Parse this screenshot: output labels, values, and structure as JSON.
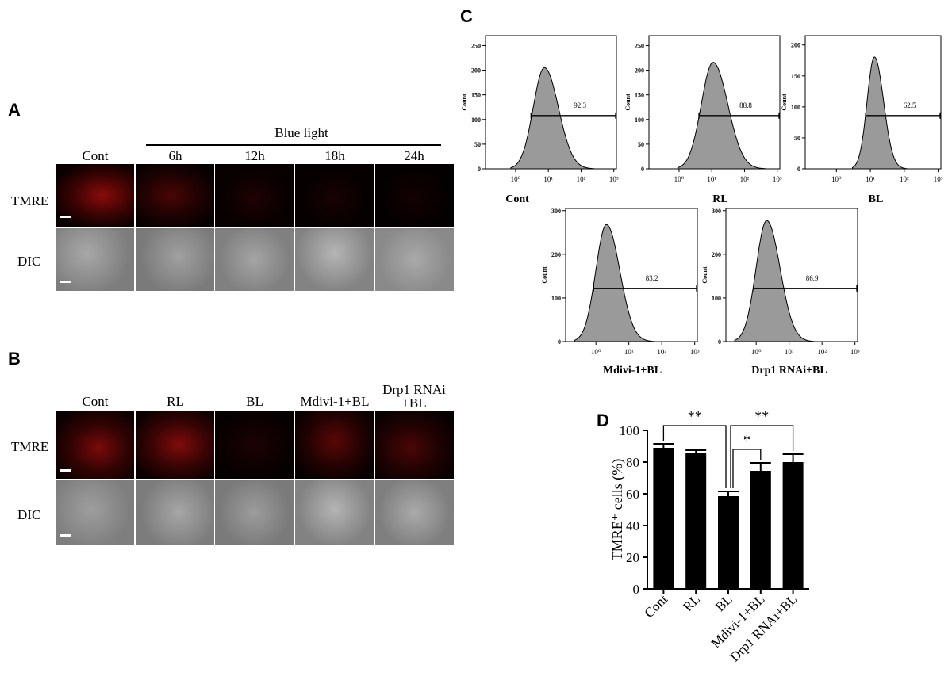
{
  "panels": {
    "A": "A",
    "B": "B",
    "C": "C",
    "D": "D"
  },
  "panel_a": {
    "group_label": "Blue light",
    "columns": [
      "Cont",
      "6h",
      "12h",
      "18h",
      "24h"
    ],
    "rows": [
      "TMRE",
      "DIC"
    ]
  },
  "panel_b": {
    "columns": [
      "Cont",
      "RL",
      "BL",
      "Mdivi-1+BL",
      "Drp1 RNAi",
      "+BL"
    ],
    "rows": [
      "TMRE",
      "DIC"
    ]
  },
  "panel_c": {
    "plots": [
      {
        "label": "Cont",
        "gate": "92.3",
        "yticks": [
          "0",
          "50",
          "100",
          "150",
          "200",
          "250"
        ]
      },
      {
        "label": "RL",
        "gate": "88.8",
        "yticks": [
          "0",
          "50",
          "100",
          "150",
          "200",
          "250"
        ]
      },
      {
        "label": "BL",
        "gate": "62.5",
        "yticks": [
          "0",
          "50",
          "100",
          "150",
          "200"
        ]
      },
      {
        "label": "Mdivi-1+BL",
        "gate": "83.2",
        "yticks": [
          "0",
          "100",
          "200",
          "300"
        ]
      },
      {
        "label": "Drp1 RNAi+BL",
        "gate": "86.9",
        "yticks": [
          "0",
          "100",
          "200",
          "300"
        ]
      }
    ],
    "ylabel": "Count",
    "xticks": [
      "10⁰",
      "10¹",
      "10²",
      "10³"
    ]
  },
  "chart_data": {
    "type": "bar",
    "categories": [
      "Cont",
      "RL",
      "BL",
      "Mdivi-1+BL",
      "Drp1 RNAi+BL"
    ],
    "values": [
      89,
      86,
      58.5,
      74.5,
      80
    ],
    "errors": [
      2.5,
      1.5,
      3,
      5,
      5
    ],
    "ylabel": "TMRE⁺ cells (%)",
    "ylim": [
      0,
      100
    ],
    "yticks": [
      "0",
      "20",
      "40",
      "60",
      "80",
      "100"
    ],
    "significance": [
      {
        "from": "Cont",
        "to": "BL",
        "label": "**"
      },
      {
        "from": "BL",
        "to": "Drp1 RNAi+BL",
        "label": "**"
      },
      {
        "from": "BL",
        "to": "Mdivi-1+BL",
        "label": "*"
      }
    ]
  }
}
